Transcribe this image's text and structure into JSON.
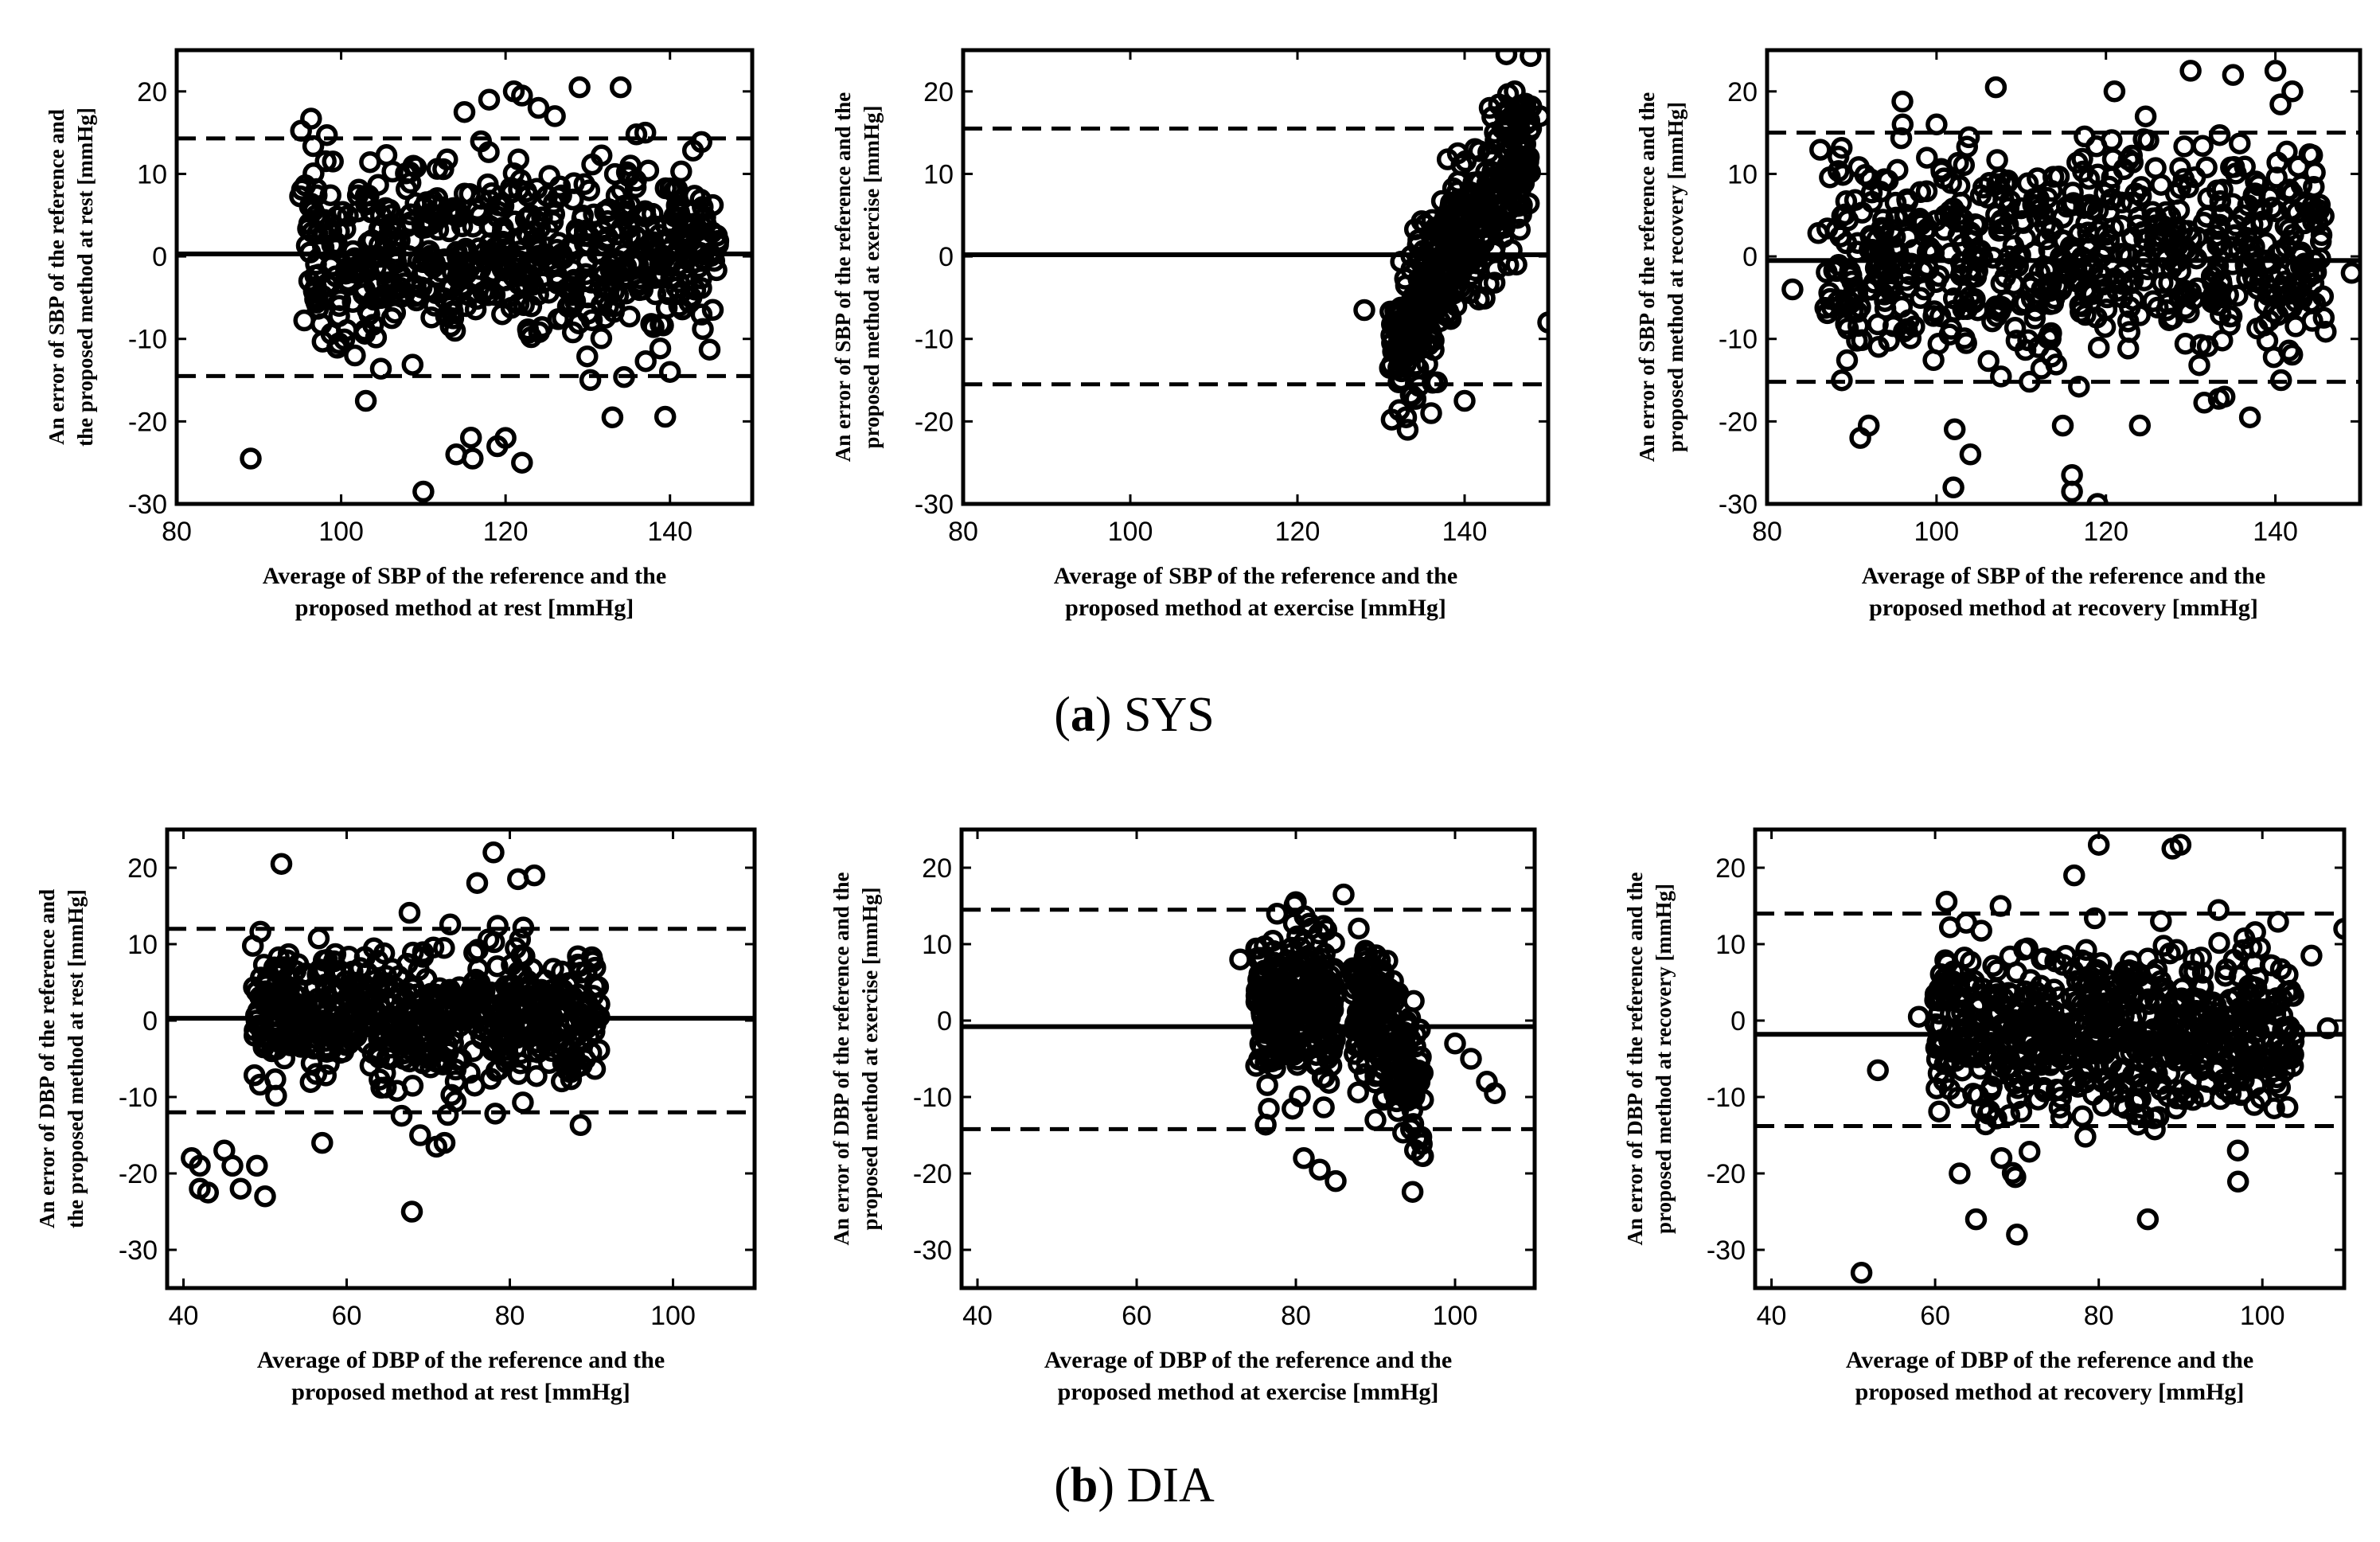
{
  "figure": {
    "row_captions": [
      {
        "letter": "a",
        "text": "SYS"
      },
      {
        "letter": "b",
        "text": "DIA"
      }
    ]
  },
  "colors": {
    "ink": "#000000",
    "background": "#ffffff"
  },
  "chart_data": [
    {
      "type": "scatter",
      "row": "SYS",
      "condition": "rest",
      "title": "",
      "xlabel": [
        "Average of SBP of the reference and the",
        "proposed method at rest [mmHg]"
      ],
      "ylabel": [
        "An error of SBP of the reference and",
        "the proposed method at rest [mmHg]"
      ],
      "xlim": [
        80,
        150
      ],
      "ylim": [
        -30,
        25
      ],
      "xticks": [
        80,
        100,
        120,
        140
      ],
      "yticks": [
        -30,
        -20,
        -10,
        0,
        10,
        20
      ],
      "mean_line": 0.3,
      "upper_loa": 14.3,
      "lower_loa": -14.5,
      "cloud": [
        {
          "x_range": [
            95,
            146
          ],
          "y_mean": 0.5,
          "y_sd": 5.5,
          "count": 600
        }
      ],
      "outliers": [
        [
          89,
          -24.5
        ],
        [
          110,
          -28.5
        ],
        [
          114,
          -24
        ],
        [
          116,
          -24.5
        ],
        [
          119,
          -23
        ],
        [
          120,
          -22
        ],
        [
          122,
          -25
        ],
        [
          103,
          -17.5
        ],
        [
          122,
          19.5
        ],
        [
          121,
          20
        ],
        [
          124,
          18
        ],
        [
          129,
          20.5
        ],
        [
          134,
          20.5
        ],
        [
          118,
          19
        ],
        [
          126,
          17
        ],
        [
          133,
          -19.5
        ],
        [
          115,
          17.5
        ],
        [
          137,
          15
        ],
        [
          140,
          -14
        ],
        [
          99,
          11.5
        ]
      ]
    },
    {
      "type": "scatter",
      "row": "SYS",
      "condition": "exercise",
      "title": "",
      "xlabel": [
        "Average of SBP of the reference and the",
        "proposed method at exercise [mmHg]"
      ],
      "ylabel": [
        "An error of SBP of the reference and the",
        "proposed method at exercise [mmHg]"
      ],
      "xlim": [
        80,
        150
      ],
      "ylim": [
        -30,
        25
      ],
      "xticks": [
        80,
        100,
        120,
        140
      ],
      "yticks": [
        -30,
        -20,
        -10,
        0,
        10,
        20
      ],
      "mean_line": 0.2,
      "upper_loa": 15.5,
      "lower_loa": -15.5,
      "cloud": [
        {
          "x_range": [
            131,
            148
          ],
          "y_mean": -1,
          "y_sd": 4.5,
          "slope": 1.5,
          "x_center": 138,
          "count": 400
        }
      ],
      "outliers": [
        [
          145,
          24.5
        ],
        [
          149,
          17
        ],
        [
          150,
          -8
        ],
        [
          128,
          -6.5
        ],
        [
          133,
          -19.5
        ],
        [
          136,
          -19
        ],
        [
          140,
          -17.5
        ],
        [
          146,
          20
        ],
        [
          143,
          18
        ]
      ]
    },
    {
      "type": "scatter",
      "row": "SYS",
      "condition": "recovery",
      "title": "",
      "xlabel": [
        "Average of SBP of the reference and the",
        "proposed method at recovery [mmHg]"
      ],
      "ylabel": [
        "An error of SBP of the reference and the",
        "proposed method at recovery [mmHg]"
      ],
      "xlim": [
        80,
        150
      ],
      "ylim": [
        -30,
        25
      ],
      "xticks": [
        80,
        100,
        120,
        140
      ],
      "yticks": [
        -30,
        -20,
        -10,
        0,
        10,
        20
      ],
      "mean_line": -0.5,
      "upper_loa": 15,
      "lower_loa": -15.2,
      "cloud": [
        {
          "x_range": [
            86,
            146
          ],
          "y_mean": 0,
          "y_sd": 6.5,
          "count": 650
        }
      ],
      "outliers": [
        [
          119,
          -30
        ],
        [
          116,
          -28.5
        ],
        [
          116,
          -26.5
        ],
        [
          102,
          -28
        ],
        [
          91,
          -22
        ],
        [
          92,
          -20.5
        ],
        [
          104,
          -24
        ],
        [
          107,
          20.5
        ],
        [
          130,
          22.5
        ],
        [
          135,
          22
        ],
        [
          140,
          22.5
        ],
        [
          142,
          20
        ],
        [
          149,
          -2
        ],
        [
          83,
          -4
        ],
        [
          124,
          -20.5
        ],
        [
          134,
          -17
        ],
        [
          137,
          -19.5
        ],
        [
          121,
          20
        ],
        [
          100,
          16
        ],
        [
          96,
          16
        ]
      ]
    },
    {
      "type": "scatter",
      "row": "DIA",
      "condition": "rest",
      "title": "",
      "xlabel": [
        "Average of DBP of the reference and the",
        "proposed method at rest [mmHg]"
      ],
      "ylabel": [
        "An error of DBP of the reference and",
        "the proposed method at rest [mmHg]"
      ],
      "xlim": [
        38,
        110
      ],
      "ylim": [
        -35,
        25
      ],
      "xticks": [
        40,
        60,
        80,
        100
      ],
      "yticks": [
        -30,
        -20,
        -10,
        0,
        10,
        20
      ],
      "mean_line": 0.3,
      "upper_loa": 12,
      "lower_loa": -12,
      "cloud": [
        {
          "x_range": [
            48,
            91
          ],
          "y_mean": 0.5,
          "y_sd": 4.5,
          "count": 600
        }
      ],
      "outliers": [
        [
          68,
          -25
        ],
        [
          50,
          -23
        ],
        [
          43,
          -22.5
        ],
        [
          42,
          -22
        ],
        [
          41,
          -18
        ],
        [
          42,
          -19
        ],
        [
          46,
          -19
        ],
        [
          52,
          20.5
        ],
        [
          78,
          22
        ],
        [
          83,
          19
        ],
        [
          81,
          18.5
        ],
        [
          76,
          18
        ],
        [
          45,
          -17
        ],
        [
          47,
          -22
        ],
        [
          49,
          -19
        ],
        [
          57,
          -16
        ],
        [
          71,
          -16.5
        ],
        [
          72,
          -16
        ],
        [
          69,
          -15
        ]
      ]
    },
    {
      "type": "scatter",
      "row": "DIA",
      "condition": "exercise",
      "title": "",
      "xlabel": [
        "Average of DBP of the reference and the",
        "proposed method at exercise [mmHg]"
      ],
      "ylabel": [
        "An error of DBP of the reference and the",
        "proposed method at exercise [mmHg]"
      ],
      "xlim": [
        38,
        110
      ],
      "ylim": [
        -35,
        25
      ],
      "xticks": [
        40,
        60,
        80,
        100
      ],
      "yticks": [
        -30,
        -20,
        -10,
        0,
        10,
        20
      ],
      "mean_line": -0.8,
      "upper_loa": 14.5,
      "lower_loa": -14.2,
      "cloud": [
        {
          "x_range": [
            75,
            85
          ],
          "y_mean": 2,
          "y_sd": 5,
          "count": 260
        },
        {
          "x_range": [
            87,
            96
          ],
          "y_mean": -2,
          "y_sd": 5,
          "slope": -1.2,
          "x_center": 91,
          "count": 200
        }
      ],
      "outliers": [
        [
          85,
          -21
        ],
        [
          86,
          16.5
        ],
        [
          80,
          15.5
        ],
        [
          73,
          8
        ],
        [
          104,
          -8
        ],
        [
          105,
          -9.5
        ],
        [
          100,
          -3
        ],
        [
          102,
          -5
        ],
        [
          90,
          -13
        ],
        [
          83,
          -19.5
        ],
        [
          81,
          -18
        ]
      ]
    },
    {
      "type": "scatter",
      "row": "DIA",
      "condition": "recovery",
      "title": "",
      "xlabel": [
        "Average of DBP of the reference and the",
        "proposed method at recovery [mmHg]"
      ],
      "ylabel": [
        "An error of DBP of the reference and the",
        "proposed method at recovery [mmHg]"
      ],
      "xlim": [
        38,
        110
      ],
      "ylim": [
        -35,
        25
      ],
      "xticks": [
        40,
        60,
        80,
        100
      ],
      "yticks": [
        -30,
        -20,
        -10,
        0,
        10,
        20
      ],
      "mean_line": -1.8,
      "upper_loa": 14,
      "lower_loa": -13.8,
      "cloud": [
        {
          "x_range": [
            60,
            104
          ],
          "y_mean": -1.5,
          "y_sd": 5.5,
          "count": 650
        }
      ],
      "outliers": [
        [
          51,
          -33
        ],
        [
          70,
          -28
        ],
        [
          86,
          -26
        ],
        [
          65,
          -26
        ],
        [
          80,
          23
        ],
        [
          89,
          22.5
        ],
        [
          90,
          23
        ],
        [
          110,
          12
        ],
        [
          106,
          8.5
        ],
        [
          97,
          -17
        ],
        [
          108,
          -1
        ],
        [
          53,
          -6.5
        ],
        [
          58,
          0.5
        ],
        [
          63,
          -20
        ],
        [
          68,
          15
        ],
        [
          77,
          19
        ]
      ]
    }
  ]
}
